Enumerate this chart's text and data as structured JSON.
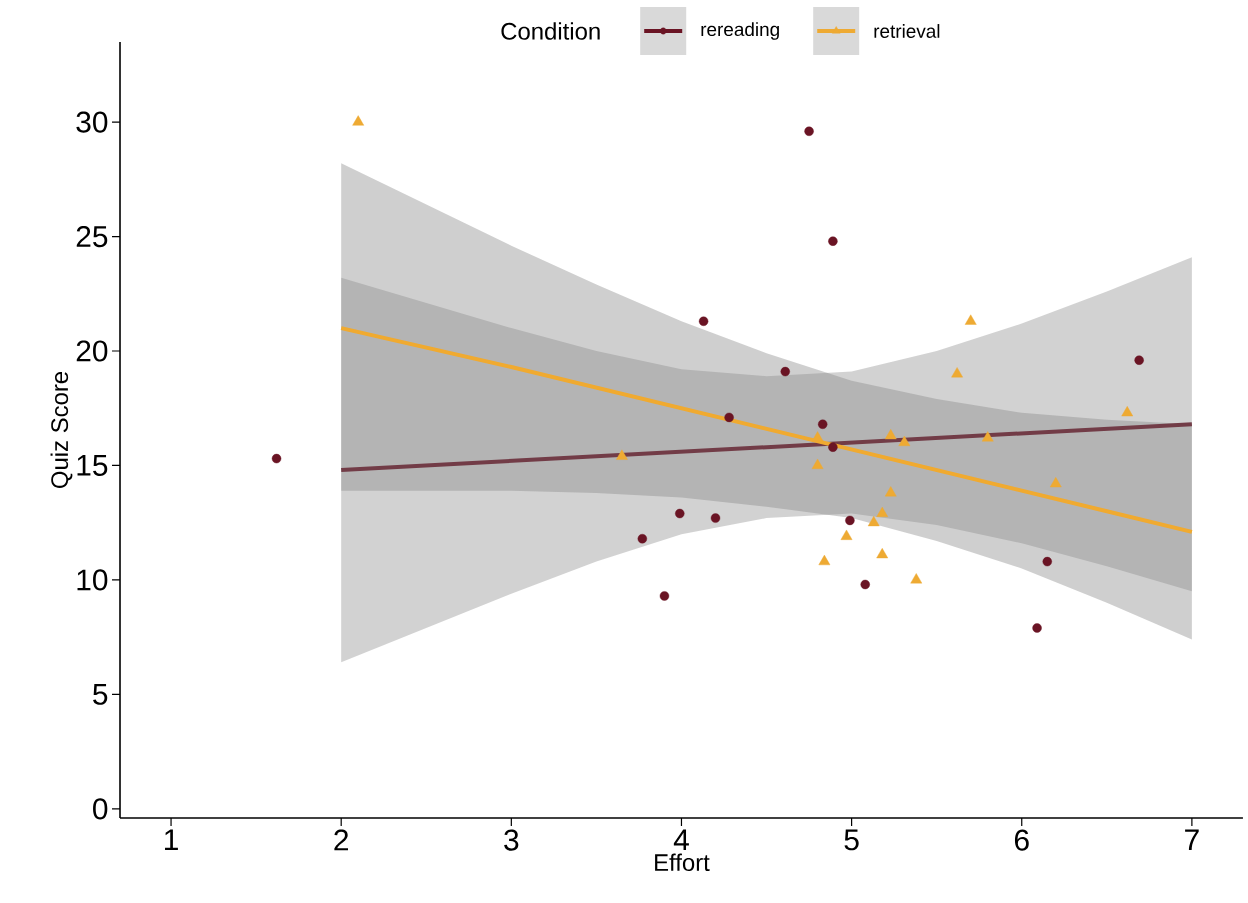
{
  "chart_data": {
    "type": "scatter",
    "xlabel": "Effort",
    "ylabel": "Quiz Score",
    "legend_title": "Condition",
    "legend": "top",
    "grid": false,
    "xlim": [
      0.7,
      7.3
    ],
    "ylim": [
      -0.4,
      33.5
    ],
    "xticks": [
      1,
      2,
      3,
      4,
      5,
      6,
      7
    ],
    "yticks": [
      0,
      5,
      10,
      15,
      20,
      25,
      30
    ],
    "series": [
      {
        "name": "rereading",
        "type": "scatter",
        "marker": "circle",
        "color": "#6a1424",
        "x": [
          1.62,
          4.75,
          4.89,
          4.13,
          4.61,
          4.28,
          4.83,
          4.89,
          3.99,
          4.2,
          3.77,
          3.9,
          4.99,
          5.08,
          6.15,
          6.09,
          6.69
        ],
        "values": [
          15.3,
          29.6,
          24.8,
          21.3,
          19.1,
          17.1,
          16.8,
          15.8,
          12.9,
          12.7,
          11.8,
          9.3,
          12.6,
          9.8,
          10.8,
          7.9,
          19.6
        ]
      },
      {
        "name": "retrieval",
        "type": "scatter",
        "marker": "triangle",
        "color": "#eeaa33",
        "x": [
          2.1,
          3.65,
          4.8,
          4.8,
          5.23,
          5.31,
          5.8,
          5.23,
          5.18,
          5.13,
          4.97,
          4.84,
          5.18,
          5.38,
          5.7,
          5.62,
          6.62,
          6.2
        ],
        "values": [
          30.0,
          15.4,
          16.2,
          15.0,
          16.3,
          16.0,
          16.2,
          13.8,
          12.9,
          12.5,
          11.9,
          10.8,
          11.1,
          10.0,
          21.3,
          19.0,
          17.3,
          14.2
        ]
      },
      {
        "type": "line",
        "color": "#723c47",
        "x": [
          2,
          3,
          3.5,
          4,
          4.5,
          5,
          5.5,
          6,
          6.5,
          7
        ],
        "values": [
          14.8,
          15.2,
          15.4,
          15.6,
          15.8,
          16.0,
          16.2,
          16.4,
          16.6,
          16.8
        ],
        "lower": [
          6.4,
          9.4,
          10.8,
          12.0,
          12.7,
          12.9,
          12.4,
          11.6,
          10.6,
          9.5
        ],
        "upper": [
          23.2,
          21.0,
          20.0,
          19.2,
          18.9,
          19.1,
          20.0,
          21.2,
          22.6,
          24.1
        ]
      },
      {
        "type": "line",
        "color": "#f0aa30",
        "x": [
          2,
          3,
          3.5,
          4,
          4.5,
          5,
          5.5,
          6,
          6.5,
          7
        ],
        "values": [
          21.0,
          19.3,
          18.4,
          17.5,
          16.6,
          15.7,
          14.8,
          13.9,
          13.0,
          12.1
        ],
        "lower": [
          13.9,
          13.9,
          13.8,
          13.6,
          13.2,
          12.7,
          11.7,
          10.5,
          9.0,
          7.4
        ],
        "upper": [
          28.2,
          24.6,
          22.9,
          21.3,
          19.9,
          18.7,
          17.9,
          17.3,
          17.0,
          16.8
        ]
      }
    ]
  }
}
